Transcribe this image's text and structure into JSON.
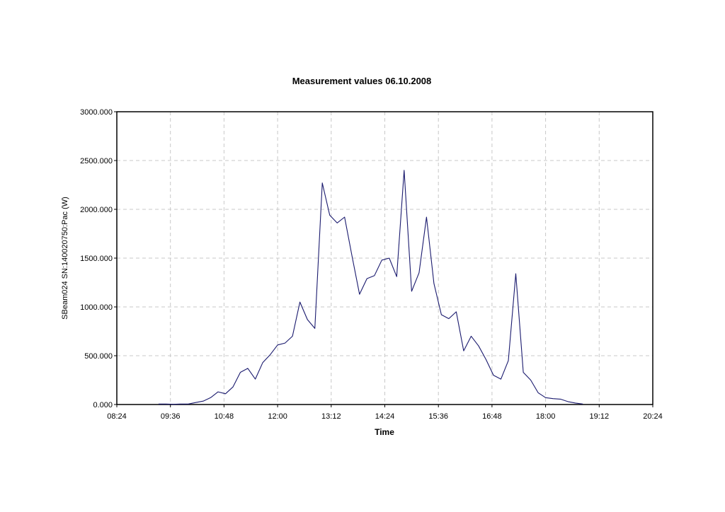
{
  "chart_data": {
    "type": "line",
    "title": "Measurement values 06.10.2008",
    "xlabel": "Time",
    "ylabel": "SBeam024 SN:140020750:Pac (W)",
    "x_tick_labels": [
      "08:24",
      "09:36",
      "10:48",
      "12:00",
      "13:12",
      "14:24",
      "15:36",
      "16:48",
      "18:00",
      "19:12",
      "20:24"
    ],
    "y_tick_labels": [
      "0.000",
      "500.000",
      "1000.000",
      "1500.000",
      "2000.000",
      "2500.000",
      "3000.000"
    ],
    "xlim": [
      "08:24",
      "20:24"
    ],
    "ylim": [
      0,
      3000
    ],
    "grid": true,
    "series": [
      {
        "x": [
          "09:20",
          "09:30",
          "09:40",
          "09:50",
          "10:00",
          "10:10",
          "10:20",
          "10:30",
          "10:40",
          "10:50",
          "11:00",
          "11:10",
          "11:20",
          "11:30",
          "11:40",
          "11:50",
          "12:00",
          "12:10",
          "12:20",
          "12:30",
          "12:40",
          "12:50",
          "13:00",
          "13:10",
          "13:20",
          "13:30",
          "13:40",
          "13:50",
          "14:00",
          "14:10",
          "14:20",
          "14:30",
          "14:40",
          "14:50",
          "15:00",
          "15:10",
          "15:20",
          "15:30",
          "15:40",
          "15:50",
          "16:00",
          "16:10",
          "16:20",
          "16:30",
          "16:40",
          "16:50",
          "17:00",
          "17:10",
          "17:20",
          "17:30",
          "17:40",
          "17:50",
          "18:00",
          "18:10",
          "18:20",
          "18:30",
          "18:40",
          "18:50"
        ],
        "values": [
          5,
          5,
          2,
          5,
          5,
          20,
          35,
          70,
          130,
          110,
          180,
          330,
          370,
          260,
          430,
          510,
          610,
          630,
          700,
          1050,
          870,
          780,
          2270,
          1940,
          1860,
          1920,
          1520,
          1130,
          1290,
          1320,
          1480,
          1500,
          1310,
          2400,
          1160,
          1350,
          1920,
          1240,
          920,
          880,
          950,
          550,
          700,
          600,
          460,
          300,
          260,
          450,
          1340,
          330,
          250,
          120,
          70,
          60,
          55,
          30,
          15,
          5
        ]
      }
    ]
  }
}
